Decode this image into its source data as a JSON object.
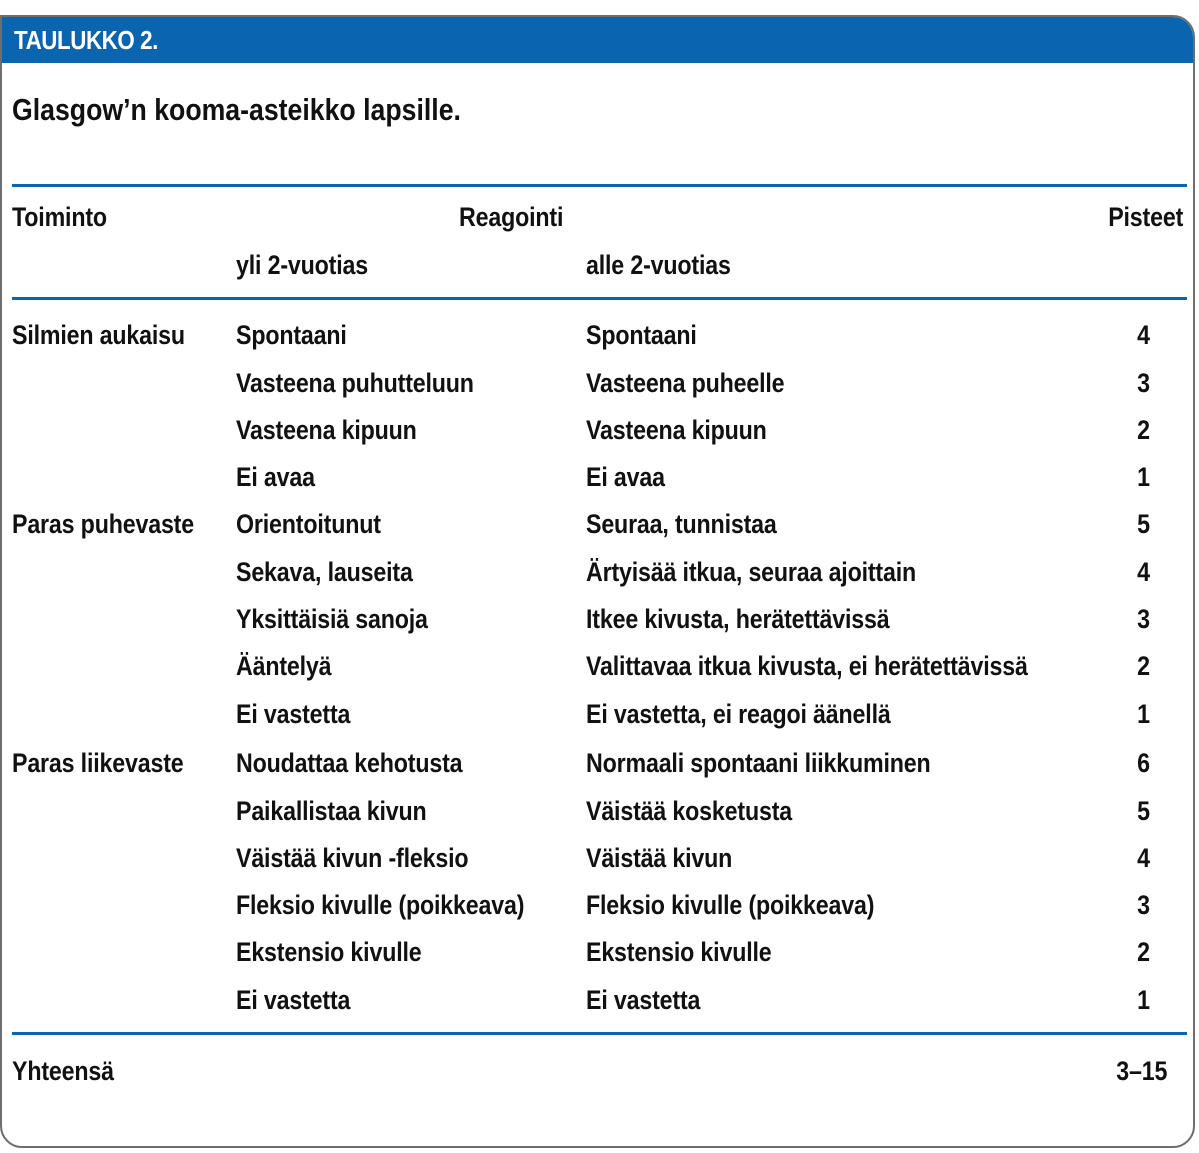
{
  "header": {
    "label": "TAULUKKO 2."
  },
  "title": "Glasgow’n kooma-asteikko lapsille.",
  "columns": {
    "function": "Toiminto",
    "response": "Reagointi",
    "points": "Pisteet",
    "over2": "yli 2-vuotias",
    "under2": "alle 2-vuotias"
  },
  "rows": [
    {
      "function": "Silmien aukaisu",
      "over2": "Spontaani",
      "under2": "Spontaani",
      "points": "4"
    },
    {
      "function": "",
      "over2": "Vasteena puhutteluun",
      "under2": "Vasteena puheelle",
      "points": "3"
    },
    {
      "function": "",
      "over2": "Vasteena kipuun",
      "under2": "Vasteena kipuun",
      "points": "2"
    },
    {
      "function": "",
      "over2": "Ei avaa",
      "under2": "Ei avaa",
      "points": "1"
    },
    {
      "function": "Paras puhevaste",
      "over2": "Orientoitunut",
      "under2": "Seuraa, tunnistaa",
      "points": "5"
    },
    {
      "function": "",
      "over2": "Sekava, lauseita",
      "under2": "Ärtyisää itkua, seuraa ajoittain",
      "points": "4"
    },
    {
      "function": "",
      "over2": "Yksittäisiä sanoja",
      "under2": "Itkee kivusta, herätettävissä",
      "points": "3"
    },
    {
      "function": "",
      "over2": "Ääntelyä",
      "under2": "Valittavaa itkua kivusta, ei herätettävissä",
      "points": "2"
    },
    {
      "function": "",
      "over2": "Ei vastetta",
      "under2": "Ei vastetta, ei reagoi äänellä",
      "points": "1"
    },
    {
      "function": "Paras liikevaste",
      "over2": "Noudattaa kehotusta",
      "under2": "Normaali spontaani liikkuminen",
      "points": "6"
    },
    {
      "function": "",
      "over2": "Paikallistaa kivun",
      "under2": "Väistää kosketusta",
      "points": "5"
    },
    {
      "function": "",
      "over2": "Väistää kivun -fleksio",
      "under2": "Väistää kivun",
      "points": "4"
    },
    {
      "function": "",
      "over2": "Fleksio kivulle (poikkeava)",
      "under2": "Fleksio kivulle (poikkeava)",
      "points": "3"
    },
    {
      "function": "",
      "over2": "Ekstensio kivulle",
      "under2": "Ekstensio kivulle",
      "points": "2"
    },
    {
      "function": "",
      "over2": "Ei vastetta",
      "under2": "Ei vastetta",
      "points": "1"
    }
  ],
  "total": {
    "label": "Yhteensä",
    "value": "3–15"
  },
  "colors": {
    "accent": "#0a64b0",
    "border": "#6e6e6e"
  }
}
